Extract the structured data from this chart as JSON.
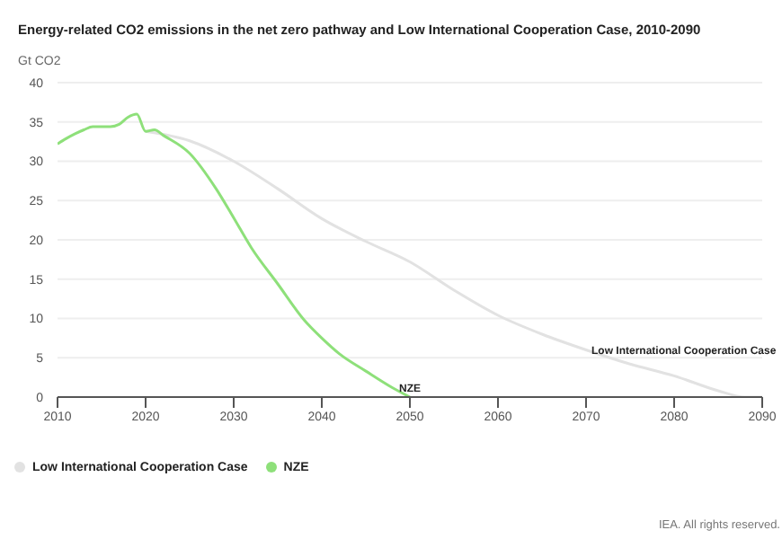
{
  "chart_data": {
    "type": "line",
    "title": "Energy-related CO2 emissions in the net zero pathway and Low International Cooperation Case, 2010-2090",
    "ylabel": "Gt CO2",
    "xlim": [
      2010,
      2090
    ],
    "xticks": [
      2010,
      2020,
      2030,
      2040,
      2050,
      2060,
      2070,
      2080,
      2090
    ],
    "ylim": [
      0,
      40
    ],
    "yticks": [
      0,
      5,
      10,
      15,
      20,
      25,
      30,
      35,
      40
    ],
    "grid": "y",
    "legend": "bottom left",
    "marker": "none",
    "line_style": "solid",
    "series": [
      {
        "name": "Low International Cooperation Case",
        "color": "#e2e2e2",
        "x": [
          2020,
          2025,
          2030,
          2035,
          2040,
          2045,
          2050,
          2055,
          2060,
          2065,
          2070,
          2075,
          2080,
          2085,
          2088,
          2090
        ],
        "values": [
          33.8,
          32.6,
          30,
          26.5,
          22.7,
          19.8,
          17.2,
          13.6,
          10.4,
          8,
          6,
          4.2,
          2.7,
          0.8,
          0,
          0
        ]
      },
      {
        "name": "NZE",
        "color": "#8ee07a",
        "x": [
          2010,
          2011,
          2012,
          2013,
          2014,
          2015,
          2016,
          2017,
          2018,
          2019,
          2020,
          2021,
          2022,
          2025,
          2028,
          2030,
          2032,
          2035,
          2038,
          2040,
          2042,
          2045,
          2048,
          2050
        ],
        "values": [
          32.2,
          32.9,
          33.5,
          34,
          34.4,
          34.4,
          34.4,
          34.7,
          35.6,
          36,
          33.8,
          34,
          33.3,
          31,
          26.5,
          22.8,
          19,
          14.4,
          9.8,
          7.5,
          5.5,
          3.3,
          1.2,
          0
        ]
      }
    ],
    "annotations": [
      {
        "text": "NZE",
        "x": 2050,
        "y": 0
      },
      {
        "text": "Low International Cooperation Case",
        "x": 2070,
        "y": 6
      },
      "IEA. All rights reserved."
    ]
  }
}
